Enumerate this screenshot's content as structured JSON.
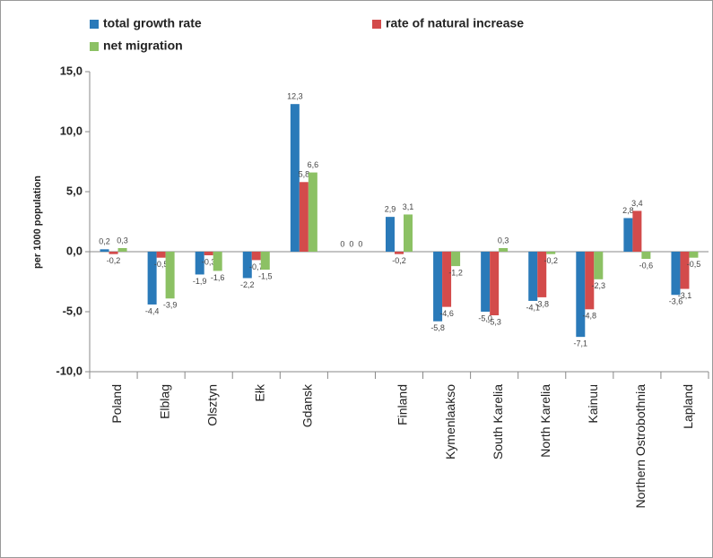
{
  "chart_data": {
    "type": "bar",
    "ylabel": "per 1000 population",
    "categories": [
      "Poland",
      "Elblag",
      "Olsztyn",
      "Ełk",
      "Gdansk",
      null,
      "Finland",
      "Kymenlaakso",
      "South Karelia",
      "North Karelia",
      "Kainuu",
      "Northern Ostrobothnia",
      "Lapland"
    ],
    "series": [
      {
        "name": "total growth rate",
        "color": "#2a7ab9",
        "values": [
          0.2,
          -4.4,
          -1.9,
          -2.2,
          12.3,
          0,
          2.9,
          -5.8,
          -5.0,
          -4.1,
          -7.1,
          2.8,
          -3.6
        ],
        "value_labels": [
          "0,2",
          "-4,4",
          "-1,9",
          "-2,2",
          "12,3",
          "0",
          "2,9",
          "-5,8",
          "-5,0",
          "-4,1",
          "-7,1",
          "2,8",
          "-3,6"
        ]
      },
      {
        "name": "rate of natural increase",
        "color": "#d34b4b",
        "values": [
          -0.2,
          -0.5,
          -0.3,
          -0.7,
          5.8,
          0,
          -0.2,
          -4.6,
          -5.3,
          -3.8,
          -4.8,
          3.4,
          -3.1
        ],
        "value_labels": [
          "-0,2",
          "-0,5",
          "-0,3",
          "-0,7",
          "5,8",
          "0",
          "-0,2",
          "-4,6",
          "-5,3",
          "-3,8",
          "-4,8",
          "3,4",
          "-3,1"
        ]
      },
      {
        "name": "net migration",
        "color": "#8cc164",
        "values": [
          0.3,
          -3.9,
          -1.6,
          -1.5,
          6.6,
          0,
          3.1,
          -1.2,
          0.3,
          -0.2,
          -2.3,
          -0.6,
          -0.5
        ],
        "value_labels": [
          "0,3",
          "-3,9",
          "-1,6",
          "-1,5",
          "6,6",
          "0",
          "3,1",
          "-1,2",
          "0,3",
          "-0,2",
          "-2,3",
          "-0,6",
          "-0,5"
        ]
      }
    ],
    "ylim": [
      -10,
      15
    ],
    "yticks": [
      {
        "value": -10,
        "label": "-10,0"
      },
      {
        "value": -5,
        "label": "-5,0"
      },
      {
        "value": 0,
        "label": "0,0"
      },
      {
        "value": 5,
        "label": "5,0"
      },
      {
        "value": 10,
        "label": "10,0"
      },
      {
        "value": 15,
        "label": "15,0"
      }
    ],
    "legend": "top"
  }
}
